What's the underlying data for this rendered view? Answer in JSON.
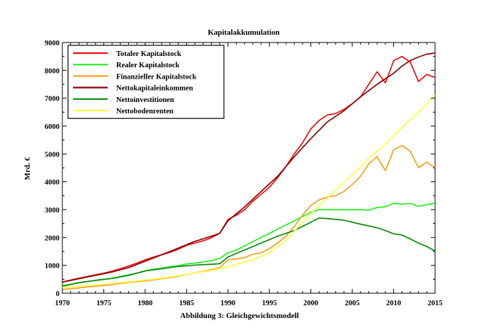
{
  "chart_data": {
    "type": "line",
    "title": "Kapitalakkumulation",
    "xlabel": "Abbildung 3: Gleichgewichtsmodell",
    "ylabel": "Mrd. €",
    "xlim": [
      1970,
      2015
    ],
    "ylim": [
      0,
      9000
    ],
    "xticks": [
      1970,
      1975,
      1980,
      1985,
      1990,
      1995,
      2000,
      2005,
      2010,
      2015
    ],
    "yticks": [
      0,
      1000,
      2000,
      3000,
      4000,
      5000,
      6000,
      7000,
      8000,
      9000
    ],
    "legend_position": "top-left",
    "series": [
      {
        "name": "Totaler Kapitalstock",
        "color": "#e81010",
        "points": [
          [
            1970,
            400
          ],
          [
            1971,
            470
          ],
          [
            1972,
            540
          ],
          [
            1973,
            600
          ],
          [
            1974,
            660
          ],
          [
            1975,
            720
          ],
          [
            1976,
            790
          ],
          [
            1977,
            880
          ],
          [
            1978,
            980
          ],
          [
            1979,
            1080
          ],
          [
            1980,
            1200
          ],
          [
            1981,
            1300
          ],
          [
            1982,
            1380
          ],
          [
            1983,
            1470
          ],
          [
            1984,
            1580
          ],
          [
            1985,
            1720
          ],
          [
            1986,
            1800
          ],
          [
            1987,
            1880
          ],
          [
            1988,
            1990
          ],
          [
            1989,
            2150
          ],
          [
            1990,
            2650
          ],
          [
            1991,
            2800
          ],
          [
            1992,
            3000
          ],
          [
            1993,
            3300
          ],
          [
            1994,
            3550
          ],
          [
            1995,
            3800
          ],
          [
            1996,
            4150
          ],
          [
            1997,
            4550
          ],
          [
            1998,
            5000
          ],
          [
            1999,
            5400
          ],
          [
            2000,
            5900
          ],
          [
            2001,
            6200
          ],
          [
            2002,
            6400
          ],
          [
            2003,
            6450
          ],
          [
            2004,
            6600
          ],
          [
            2005,
            6800
          ],
          [
            2006,
            7050
          ],
          [
            2007,
            7500
          ],
          [
            2008,
            7950
          ],
          [
            2009,
            7550
          ],
          [
            2010,
            8350
          ],
          [
            2011,
            8500
          ],
          [
            2012,
            8300
          ],
          [
            2013,
            7600
          ],
          [
            2014,
            7850
          ],
          [
            2015,
            7750
          ]
        ]
      },
      {
        "name": "Realer Kapitalstock",
        "color": "#22ee22",
        "points": [
          [
            1970,
            270
          ],
          [
            1971,
            320
          ],
          [
            1972,
            370
          ],
          [
            1973,
            420
          ],
          [
            1974,
            460
          ],
          [
            1975,
            500
          ],
          [
            1976,
            540
          ],
          [
            1977,
            600
          ],
          [
            1978,
            660
          ],
          [
            1979,
            720
          ],
          [
            1980,
            800
          ],
          [
            1981,
            860
          ],
          [
            1982,
            900
          ],
          [
            1983,
            950
          ],
          [
            1984,
            990
          ],
          [
            1985,
            1050
          ],
          [
            1986,
            1080
          ],
          [
            1987,
            1120
          ],
          [
            1988,
            1170
          ],
          [
            1989,
            1250
          ],
          [
            1990,
            1450
          ],
          [
            1991,
            1550
          ],
          [
            1992,
            1700
          ],
          [
            1993,
            1850
          ],
          [
            1994,
            2000
          ],
          [
            1995,
            2150
          ],
          [
            1996,
            2300
          ],
          [
            1997,
            2450
          ],
          [
            1998,
            2600
          ],
          [
            1999,
            2750
          ],
          [
            2000,
            2900
          ],
          [
            2001,
            3000
          ],
          [
            2002,
            3000
          ],
          [
            2003,
            2990
          ],
          [
            2004,
            3000
          ],
          [
            2005,
            3000
          ],
          [
            2006,
            3000
          ],
          [
            2007,
            2980
          ],
          [
            2008,
            3080
          ],
          [
            2009,
            3100
          ],
          [
            2010,
            3230
          ],
          [
            2011,
            3200
          ],
          [
            2012,
            3220
          ],
          [
            2013,
            3120
          ],
          [
            2014,
            3180
          ],
          [
            2015,
            3230
          ]
        ]
      },
      {
        "name": "Finanzieller Kapitalstock",
        "color": "#f5a020",
        "points": [
          [
            1970,
            130
          ],
          [
            1971,
            160
          ],
          [
            1972,
            190
          ],
          [
            1973,
            220
          ],
          [
            1974,
            250
          ],
          [
            1975,
            280
          ],
          [
            1976,
            310
          ],
          [
            1977,
            350
          ],
          [
            1978,
            390
          ],
          [
            1979,
            420
          ],
          [
            1980,
            440
          ],
          [
            1981,
            480
          ],
          [
            1982,
            520
          ],
          [
            1983,
            560
          ],
          [
            1984,
            610
          ],
          [
            1985,
            680
          ],
          [
            1986,
            730
          ],
          [
            1987,
            790
          ],
          [
            1988,
            850
          ],
          [
            1989,
            920
          ],
          [
            1990,
            1200
          ],
          [
            1991,
            1230
          ],
          [
            1992,
            1280
          ],
          [
            1993,
            1400
          ],
          [
            1994,
            1450
          ],
          [
            1995,
            1600
          ],
          [
            1996,
            1800
          ],
          [
            1997,
            2050
          ],
          [
            1998,
            2400
          ],
          [
            1999,
            2800
          ],
          [
            2000,
            3150
          ],
          [
            2001,
            3350
          ],
          [
            2002,
            3450
          ],
          [
            2003,
            3500
          ],
          [
            2004,
            3650
          ],
          [
            2005,
            3900
          ],
          [
            2006,
            4200
          ],
          [
            2007,
            4650
          ],
          [
            2008,
            4900
          ],
          [
            2009,
            4400
          ],
          [
            2010,
            5150
          ],
          [
            2011,
            5300
          ],
          [
            2012,
            5100
          ],
          [
            2013,
            4500
          ],
          [
            2014,
            4700
          ],
          [
            2015,
            4500
          ]
        ]
      },
      {
        "name": "Nettokapitaleinkommen",
        "color": "#8b0000",
        "points": [
          [
            1970,
            400
          ],
          [
            1972,
            520
          ],
          [
            1974,
            640
          ],
          [
            1976,
            760
          ],
          [
            1978,
            920
          ],
          [
            1980,
            1150
          ],
          [
            1982,
            1380
          ],
          [
            1984,
            1620
          ],
          [
            1986,
            1860
          ],
          [
            1988,
            2050
          ],
          [
            1989,
            2150
          ],
          [
            1990,
            2600
          ],
          [
            1992,
            3100
          ],
          [
            1994,
            3650
          ],
          [
            1996,
            4200
          ],
          [
            1998,
            4900
          ],
          [
            2000,
            5550
          ],
          [
            2002,
            6150
          ],
          [
            2004,
            6550
          ],
          [
            2006,
            7050
          ],
          [
            2008,
            7500
          ],
          [
            2010,
            7900
          ],
          [
            2011,
            8150
          ],
          [
            2012,
            8350
          ],
          [
            2013,
            8480
          ],
          [
            2014,
            8580
          ],
          [
            2015,
            8620
          ]
        ]
      },
      {
        "name": "Nettoinvestitionen",
        "color": "#0a8a0a",
        "points": [
          [
            1970,
            250
          ],
          [
            1972,
            380
          ],
          [
            1974,
            460
          ],
          [
            1976,
            530
          ],
          [
            1978,
            640
          ],
          [
            1980,
            800
          ],
          [
            1982,
            880
          ],
          [
            1984,
            960
          ],
          [
            1986,
            1010
          ],
          [
            1988,
            1040
          ],
          [
            1989,
            1060
          ],
          [
            1990,
            1300
          ],
          [
            1992,
            1550
          ],
          [
            1994,
            1800
          ],
          [
            1996,
            2050
          ],
          [
            1998,
            2250
          ],
          [
            2000,
            2550
          ],
          [
            2001,
            2700
          ],
          [
            2002,
            2680
          ],
          [
            2004,
            2620
          ],
          [
            2006,
            2480
          ],
          [
            2008,
            2350
          ],
          [
            2009,
            2250
          ],
          [
            2010,
            2130
          ],
          [
            2011,
            2090
          ],
          [
            2012,
            1950
          ],
          [
            2013,
            1800
          ],
          [
            2014,
            1680
          ],
          [
            2015,
            1510
          ]
        ]
      },
      {
        "name": "Nettobodenrenten",
        "color": "#ffff44",
        "points": [
          [
            1970,
            200
          ],
          [
            1973,
            270
          ],
          [
            1976,
            350
          ],
          [
            1979,
            440
          ],
          [
            1982,
            540
          ],
          [
            1985,
            680
          ],
          [
            1988,
            820
          ],
          [
            1990,
            950
          ],
          [
            1993,
            1200
          ],
          [
            1995,
            1450
          ],
          [
            1997,
            1900
          ],
          [
            1999,
            2550
          ],
          [
            2001,
            3150
          ],
          [
            2003,
            3700
          ],
          [
            2005,
            4250
          ],
          [
            2007,
            4850
          ],
          [
            2009,
            5350
          ],
          [
            2011,
            5950
          ],
          [
            2013,
            6500
          ],
          [
            2015,
            7100
          ]
        ]
      }
    ]
  }
}
